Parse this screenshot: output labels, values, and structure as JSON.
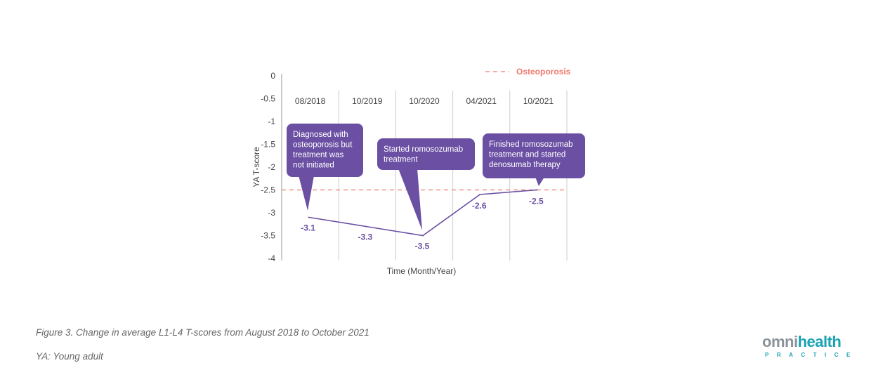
{
  "chart_data": {
    "type": "line",
    "categories": [
      "08/2018",
      "10/2019",
      "10/2020",
      "04/2021",
      "10/2021"
    ],
    "series": [
      {
        "values": [
          -3.1,
          -3.3,
          -3.5,
          -2.6,
          -2.5
        ],
        "labels": [
          "-3.1",
          "-3.3",
          "-3.5",
          "-2.6",
          "-2.5"
        ],
        "color": "#6a4fa3"
      }
    ],
    "reference_line": {
      "name": "Osteoporosis",
      "value": -2.5,
      "color": "#f07a6e",
      "style": "dashed"
    },
    "xlabel": "Time (Month/Year)",
    "ylabel": "YA T-score",
    "ylim": [
      -4,
      0
    ],
    "yticks": [
      "0",
      "-0.5",
      "-1",
      "-1.5",
      "-2",
      "-2.5",
      "-3",
      "-3.5",
      "-4"
    ],
    "ytick_values": [
      0,
      -0.5,
      -1,
      -1.5,
      -2,
      -2.5,
      -3,
      -3.5,
      -4
    ],
    "legend_position": "top-right",
    "grid": "vertical category separators",
    "annotations": [
      {
        "category": "08/2018",
        "lines": [
          "Diagnosed with",
          "osteoporosis but",
          "treatment was",
          "not initiated"
        ]
      },
      {
        "category": "10/2020",
        "lines": [
          "Started romosozumab",
          "treatment"
        ]
      },
      {
        "category": "10/2021",
        "lines": [
          "Finished romosozumab",
          "treatment and started",
          "denosumab therapy"
        ]
      }
    ],
    "annotation_color": "#6a4fa3"
  },
  "caption": {
    "figure": "Figure 3. Change in average L1-L4 T-scores from August 2018 to October 2021",
    "note": "YA: Young adult"
  },
  "logo": {
    "omni": "omni",
    "health": "health",
    "sub": "PRACTICE"
  }
}
